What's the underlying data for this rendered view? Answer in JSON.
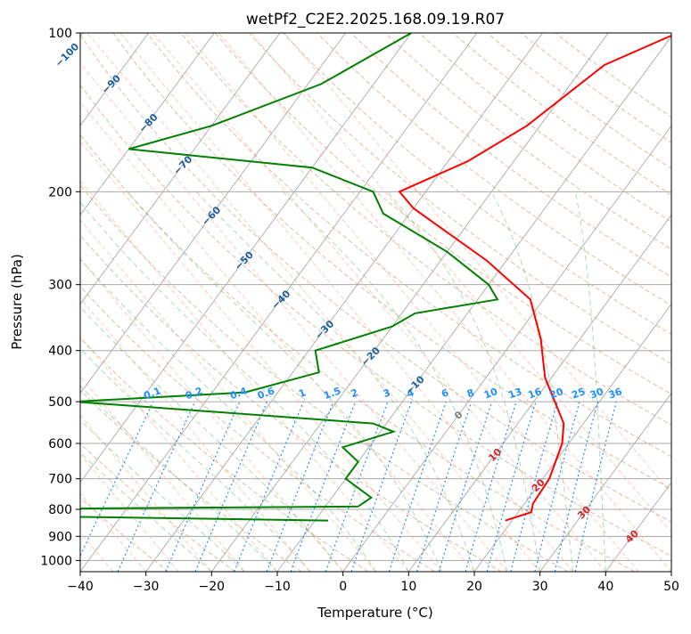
{
  "chart_data": {
    "type": "skew-t log-p",
    "title": "wetPf2_C2E2.2025.168.09.19.R07",
    "xlabel": "Temperature (°C)",
    "ylabel": "Pressure (hPa)",
    "xlim": [
      -40,
      50
    ],
    "ylim": [
      1050,
      100
    ],
    "y_scale": "log",
    "grid": true,
    "x_ticks": [
      -40,
      -30,
      -20,
      -10,
      0,
      10,
      20,
      30,
      40,
      50
    ],
    "x_tick_labels": [
      "−40",
      "−30",
      "−20",
      "−10",
      "0",
      "10",
      "20",
      "30",
      "40",
      "50"
    ],
    "y_ticks": [
      100,
      200,
      300,
      400,
      500,
      600,
      700,
      800,
      900,
      1000
    ],
    "y_tick_labels": [
      "100",
      "200",
      "300",
      "400",
      "500",
      "600",
      "700",
      "800",
      "900",
      "1000"
    ],
    "series": [
      {
        "color": "#ff0000",
        "points": [
          [
            -9.5,
            100
          ],
          [
            -17,
            115
          ],
          [
            -22,
            150
          ],
          [
            -27,
            175
          ],
          [
            -34,
            200
          ],
          [
            -30,
            215
          ],
          [
            -13,
            270
          ],
          [
            -2,
            320
          ],
          [
            4,
            380
          ],
          [
            9,
            450
          ],
          [
            14,
            510
          ],
          [
            17,
            550
          ],
          [
            19,
            600
          ],
          [
            21,
            700
          ],
          [
            21.3,
            780
          ],
          [
            22,
            810
          ],
          [
            19,
            840
          ]
        ]
      },
      {
        "color": "#008000",
        "points": [
          [
            -50,
            100
          ],
          [
            -58,
            125
          ],
          [
            -70,
            150
          ],
          [
            -80,
            166
          ],
          [
            -50,
            180
          ],
          [
            -38,
            200
          ],
          [
            -34,
            220
          ],
          [
            -20,
            260
          ],
          [
            -10,
            300
          ],
          [
            -7,
            320
          ],
          [
            -18,
            340
          ],
          [
            -20,
            360
          ],
          [
            -29,
            400
          ],
          [
            -26,
            440
          ],
          [
            -35,
            480
          ],
          [
            -60,
            500
          ],
          [
            -40,
            520
          ],
          [
            -12,
            550
          ],
          [
            -8,
            570
          ],
          [
            -14,
            610
          ],
          [
            -10,
            650
          ],
          [
            -10,
            700
          ],
          [
            -4,
            760
          ],
          [
            -5,
            790
          ],
          [
            -64,
            800
          ],
          [
            -65,
            820
          ],
          [
            -8,
            840
          ]
        ]
      }
    ],
    "isotherm_labels": [
      "−100",
      "−90",
      "−80",
      "−70",
      "−60",
      "−50",
      "−40",
      "−30",
      "−20",
      "−10",
      "0",
      "10",
      "20",
      "30",
      "40"
    ],
    "mixing_ratio_labels": [
      "0.1",
      "0.2",
      "0.4",
      "0.6",
      "1",
      "1.5",
      "2",
      "3",
      "4",
      "6",
      "8",
      "10",
      "13",
      "16",
      "20",
      "25",
      "30",
      "36"
    ],
    "mixing_ratio_values": [
      0.1,
      0.2,
      0.4,
      0.6,
      1,
      1.5,
      2,
      3,
      4,
      6,
      8,
      10,
      13,
      16,
      20,
      25,
      30,
      36
    ],
    "colors": {
      "temperature": "#ff0000",
      "dewpoint": "#008000",
      "isotherm_label_cold": "#1f5fa0",
      "isotherm_label_zero": "#808080",
      "isotherm_label_warm": "#d62728",
      "mixing_ratio": "#1e90ff",
      "dry_adiabat": "#c8a47e",
      "moist_adiabat": "#4caf50",
      "wet_bulb": "#ff9f80",
      "grid": "#aaaaaa"
    }
  }
}
